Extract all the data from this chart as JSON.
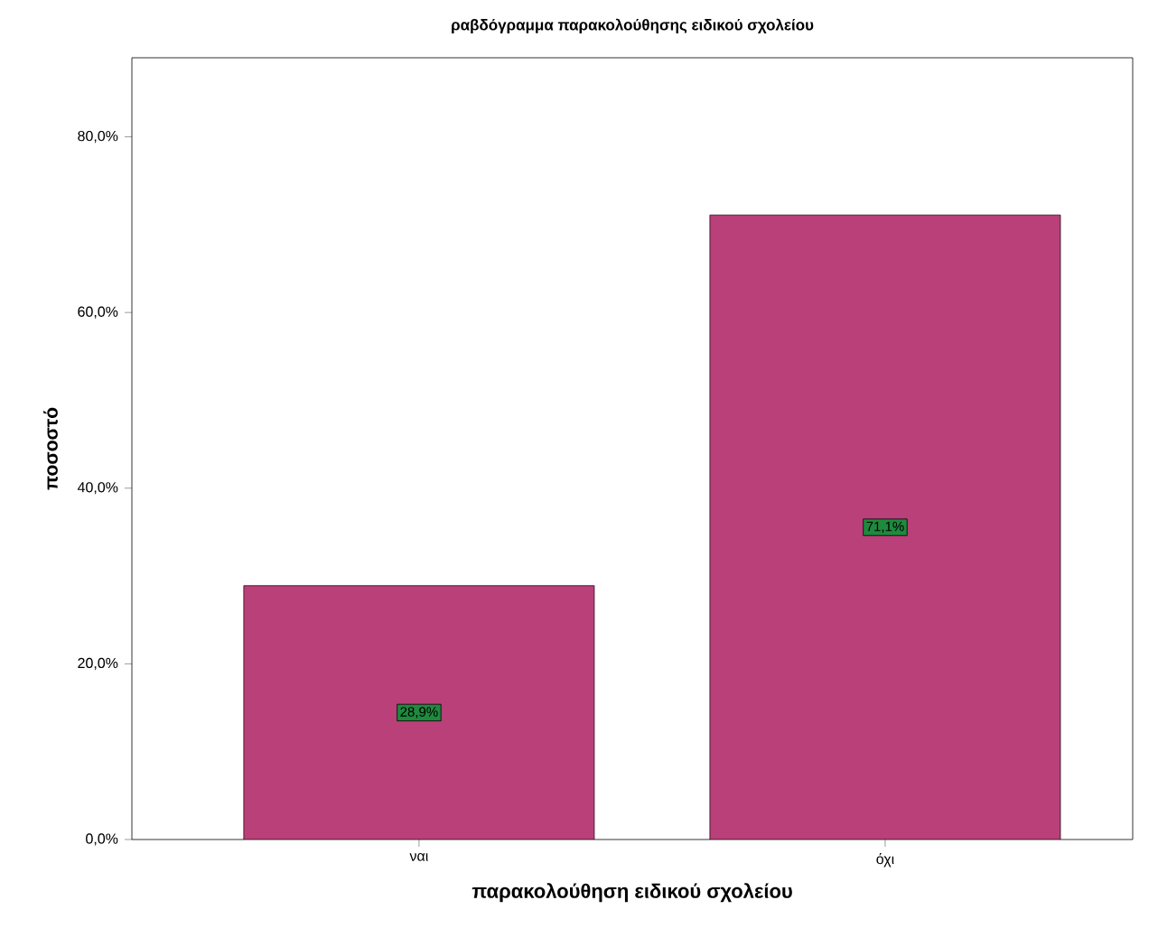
{
  "chart_data": {
    "type": "bar",
    "title": "ραβδόγραμμα παρακολούθησης ειδικού σχολείου",
    "xlabel": "παρακολούθηση ειδικού σχολείου",
    "ylabel": "ποσοστό",
    "categories": [
      "ναι",
      "όχι"
    ],
    "values": [
      28.9,
      71.1
    ],
    "value_labels": [
      "28,9%",
      "71,1%"
    ],
    "color": "#b94079",
    "ylim": [
      0,
      89
    ],
    "yticks": [
      {
        "value": 0,
        "label": "0,0%"
      },
      {
        "value": 20,
        "label": "20,0%"
      },
      {
        "value": 40,
        "label": "40,0%"
      },
      {
        "value": 60,
        "label": "60,0%"
      },
      {
        "value": 80,
        "label": "80,0%"
      }
    ],
    "grid": false
  }
}
